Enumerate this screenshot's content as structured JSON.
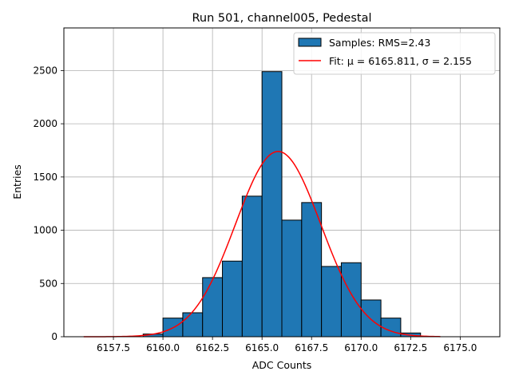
{
  "chart_data": {
    "type": "bar",
    "title": "Run 501, channel005, Pedestal",
    "xlabel": "ADC Counts",
    "ylabel": "Entries",
    "xlim": [
      6155.0,
      6177.0
    ],
    "ylim": [
      0,
      2900
    ],
    "xticks": [
      6157.5,
      6160.0,
      6162.5,
      6165.0,
      6167.5,
      6170.0,
      6172.5,
      6175.0
    ],
    "xtick_labels": [
      "6157.5",
      "6160.0",
      "6162.5",
      "6165.0",
      "6167.5",
      "6170.0",
      "6172.5",
      "6175.0"
    ],
    "yticks": [
      0,
      500,
      1000,
      1500,
      2000,
      2500
    ],
    "ytick_labels": [
      "0",
      "500",
      "1000",
      "1500",
      "2000",
      "2500"
    ],
    "grid": true,
    "legend_position": "top-right",
    "histogram": {
      "name": "Samples: RMS=2.43",
      "color": "#1f77b4",
      "bin_width": 1,
      "bin_edges_start": [
        6159,
        6160,
        6161,
        6162,
        6163,
        6164,
        6165,
        6166,
        6167,
        6168,
        6169,
        6170,
        6171,
        6172
      ],
      "values": [
        25,
        175,
        225,
        555,
        710,
        1320,
        2490,
        1095,
        1260,
        660,
        695,
        345,
        175,
        35
      ]
    },
    "fit": {
      "name": "Fit: μ = 6165.811, σ = 2.155",
      "color": "#ff0000",
      "mu": 6165.811,
      "sigma": 2.155,
      "amplitude": 1740,
      "x_range": [
        6156.0,
        6174.0
      ]
    }
  }
}
